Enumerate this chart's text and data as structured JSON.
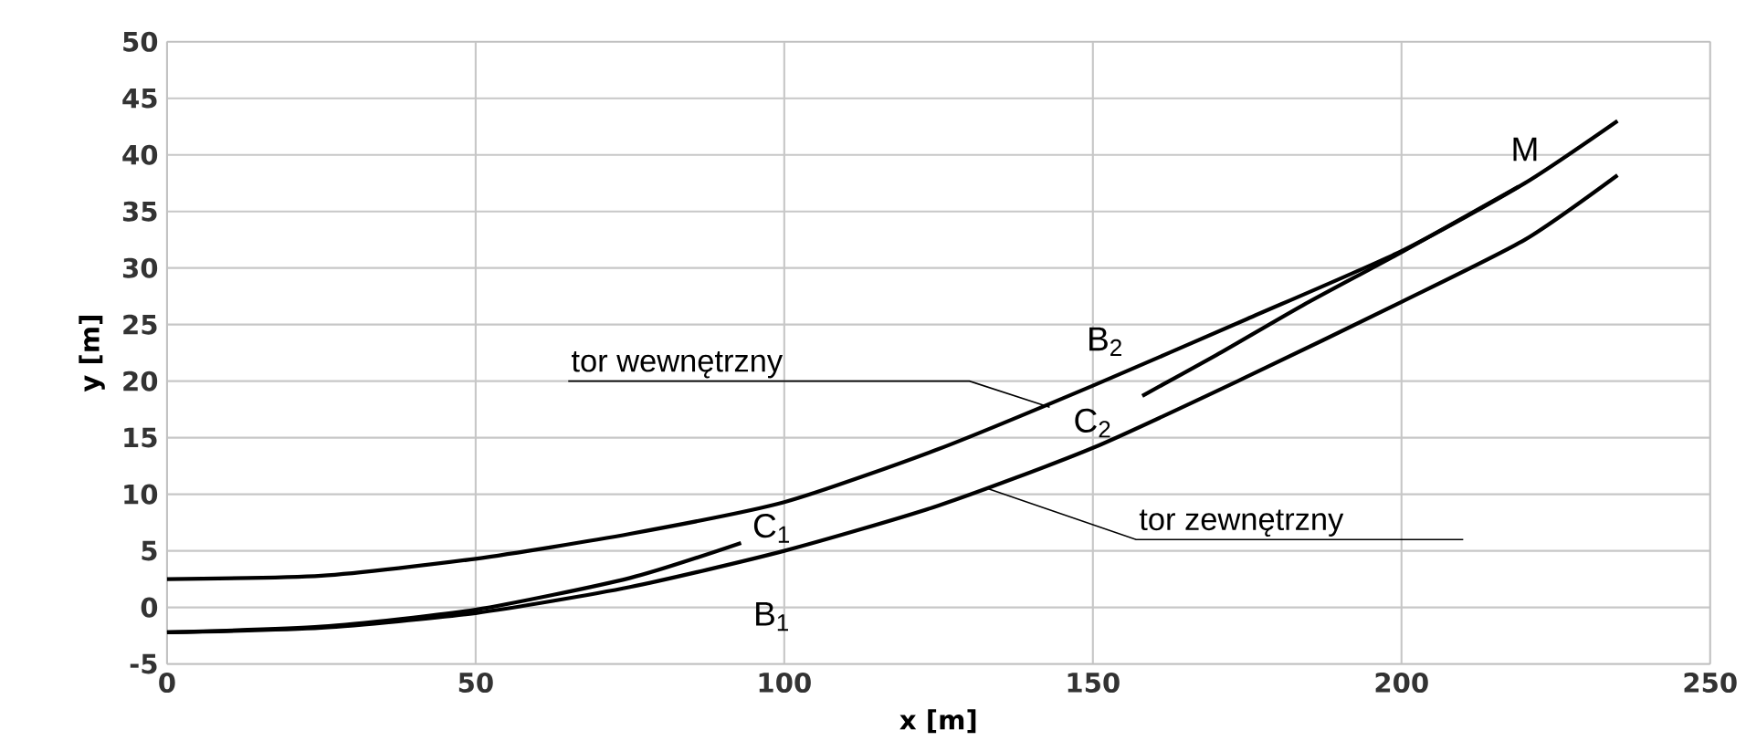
{
  "chart_data": {
    "type": "line",
    "xlabel": "x [m]",
    "ylabel": "y [m]",
    "xlim": [
      0,
      250
    ],
    "ylim": [
      -5,
      50
    ],
    "xticks": [
      0,
      50,
      100,
      150,
      200,
      250
    ],
    "yticks": [
      -5,
      0,
      5,
      10,
      15,
      20,
      25,
      30,
      35,
      40,
      45,
      50
    ],
    "grid": true,
    "marker": "none",
    "line_style": "solid",
    "series": [
      {
        "color": "#000000",
        "x": [
          0,
          25,
          50,
          75,
          100,
          125,
          150,
          175,
          200,
          220,
          235
        ],
        "values": [
          2.5,
          2.8,
          4.3,
          6.5,
          9.3,
          14,
          19.6,
          25.5,
          31.5,
          37.5,
          43
        ]
      },
      {
        "color": "#000000",
        "x": [
          0,
          25,
          50,
          75,
          100,
          125,
          150,
          175,
          200,
          220,
          235
        ],
        "values": [
          -2.2,
          -1.8,
          -0.5,
          1.8,
          5,
          9,
          14.1,
          20.4,
          27,
          32.5,
          38.2
        ]
      },
      {
        "color": "#000000",
        "x": [
          0,
          25,
          50,
          75,
          93
        ],
        "values": [
          -2.2,
          -1.7,
          -0.2,
          2.6,
          5.7
        ]
      },
      {
        "color": "#000000",
        "x": [
          158,
          170,
          184,
          200,
          219
        ],
        "values": [
          18.7,
          22.3,
          26.7,
          31.4,
          37.2
        ]
      }
    ],
    "annotations": [
      {
        "text": "tor wewnętrzny",
        "x": 143,
        "y": 17.7
      },
      {
        "text": "tor zewnętrzny",
        "x": 133,
        "y": 10.5
      },
      "C$_{1}$",
      "B$_{1}$",
      "B$_{2}$",
      "C$_{2}$",
      "M"
    ]
  }
}
